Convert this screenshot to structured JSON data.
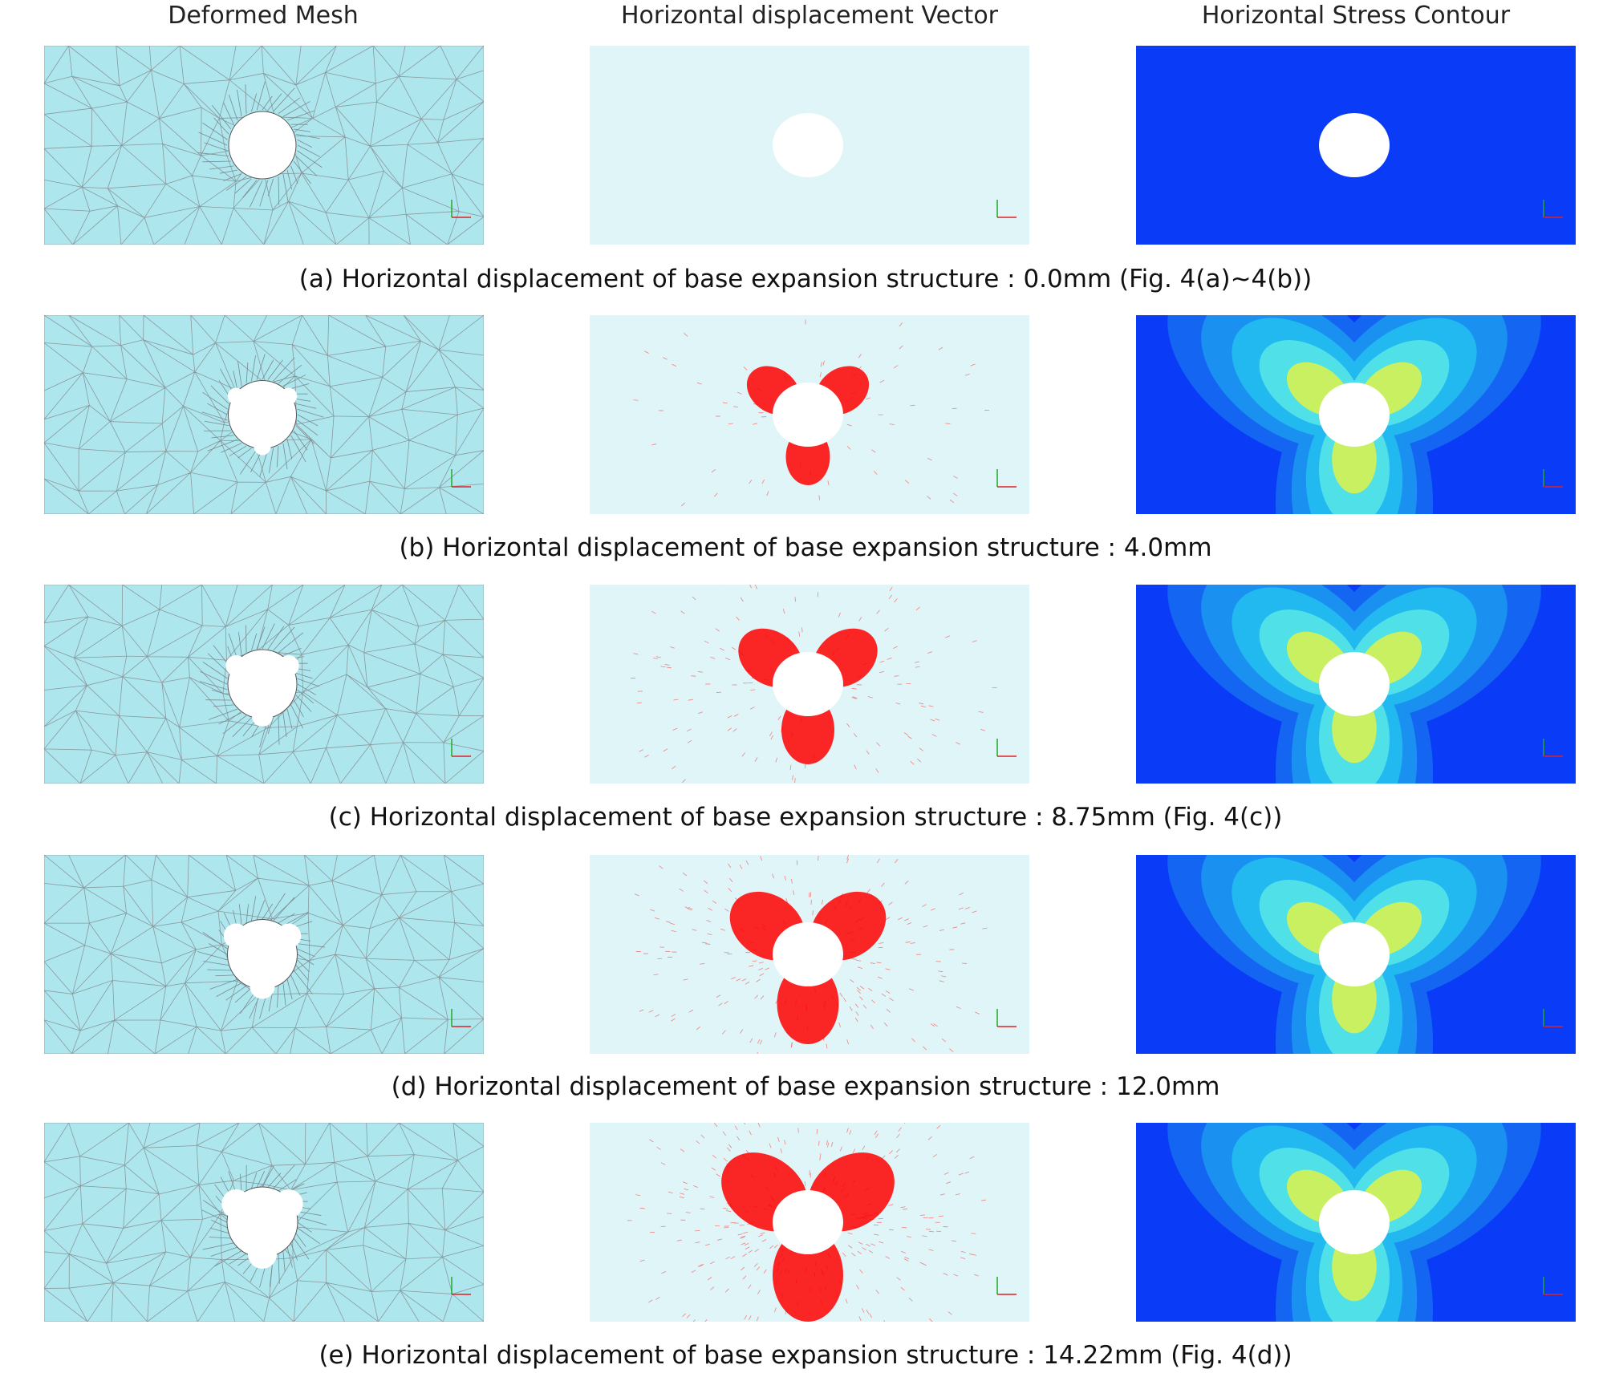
{
  "headers": [
    "Deformed Mesh",
    "Horizontal displacement Vector",
    "Horizontal Stress Contour"
  ],
  "captions": [
    "(a) Horizontal displacement of base expansion structure : 0.0mm (Fig. 4(a)~4(b))",
    "(b) Horizontal displacement of base expansion structure : 4.0mm",
    "(c) Horizontal displacement of base expansion structure : 8.75mm (Fig. 4(c))",
    "(d) Horizontal displacement of base expansion structure : 12.0mm",
    "(e) Horizontal displacement of base expansion structure : 14.22mm (Fig. 4(d))"
  ]
}
